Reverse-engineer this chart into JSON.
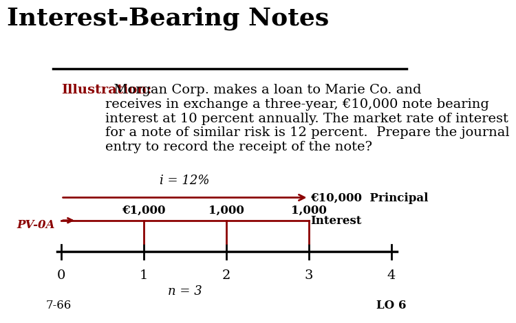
{
  "title": "Interest-Bearing Notes",
  "title_fontsize": 26,
  "bg_color": "#ffffff",
  "illustration_label": "Illustration:",
  "illustration_color": "#8B0000",
  "illustration_text": "  Morgan Corp. makes a loan to Marie Co. and\nreceives in exchange a three-year, €10,000 note bearing\ninterest at 10 percent annually. The market rate of interest\nfor a note of similar risk is 12 percent.  Prepare the journal\nentry to record the receipt of the note?",
  "illustration_fontsize": 14,
  "arrow_color": "#8B0000",
  "tick_positions": [
    0,
    1,
    2,
    3,
    4
  ],
  "tick_labels": [
    "0",
    "1",
    "2",
    "3",
    "4"
  ],
  "n_label": "n = 3",
  "i_label": "i = 12%",
  "pv_label": "PV-0A",
  "pv_color": "#8B0000",
  "principal_label": "€10,000  Principal",
  "interest_label": "Interest",
  "interest_amounts": [
    "€1,000",
    "1,000",
    "1,000"
  ],
  "footer_left": "7-66",
  "footer_right": "LO 6",
  "footer_fontsize": 12
}
